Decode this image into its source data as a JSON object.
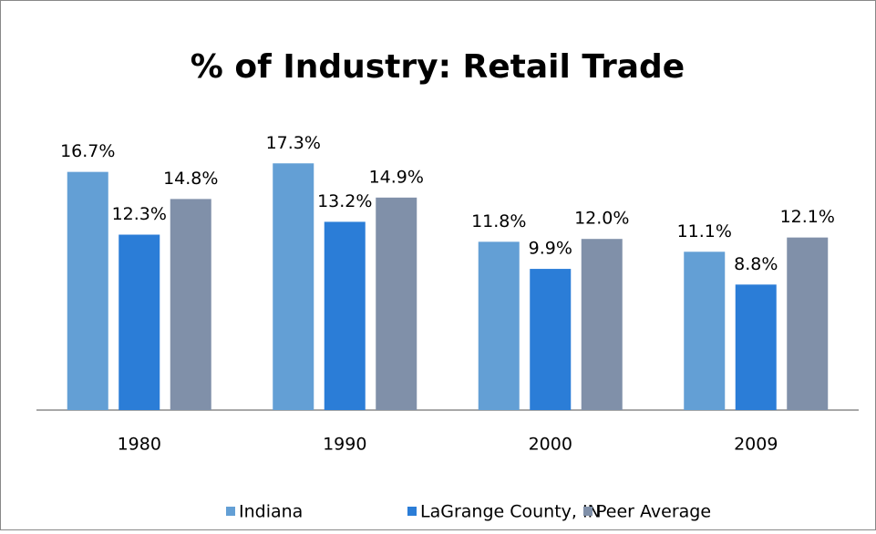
{
  "chart_data": {
    "type": "bar",
    "title": "% of Industry: Retail Trade",
    "categories": [
      "1980",
      "1990",
      "2000",
      "2009"
    ],
    "series": [
      {
        "name": "Indiana",
        "color": "#639fd5",
        "values": [
          16.7,
          17.3,
          11.8,
          11.1
        ],
        "value_labels": [
          "16.7%",
          "17.3%",
          "11.8%",
          "11.1%"
        ]
      },
      {
        "name": "LaGrange County, IN",
        "color": "#2b7dd7",
        "values": [
          12.3,
          13.2,
          9.9,
          8.8
        ],
        "value_labels": [
          "12.3%",
          "13.2%",
          "9.9%",
          "8.8%"
        ]
      },
      {
        "name": "Peer Average",
        "color": "#8090a9",
        "values": [
          14.8,
          14.9,
          12.0,
          12.1
        ],
        "value_labels": [
          "14.8%",
          "14.9%",
          "12.0%",
          "12.1%"
        ]
      }
    ],
    "ylim": [
      0,
      20
    ],
    "legend": "bottom"
  }
}
